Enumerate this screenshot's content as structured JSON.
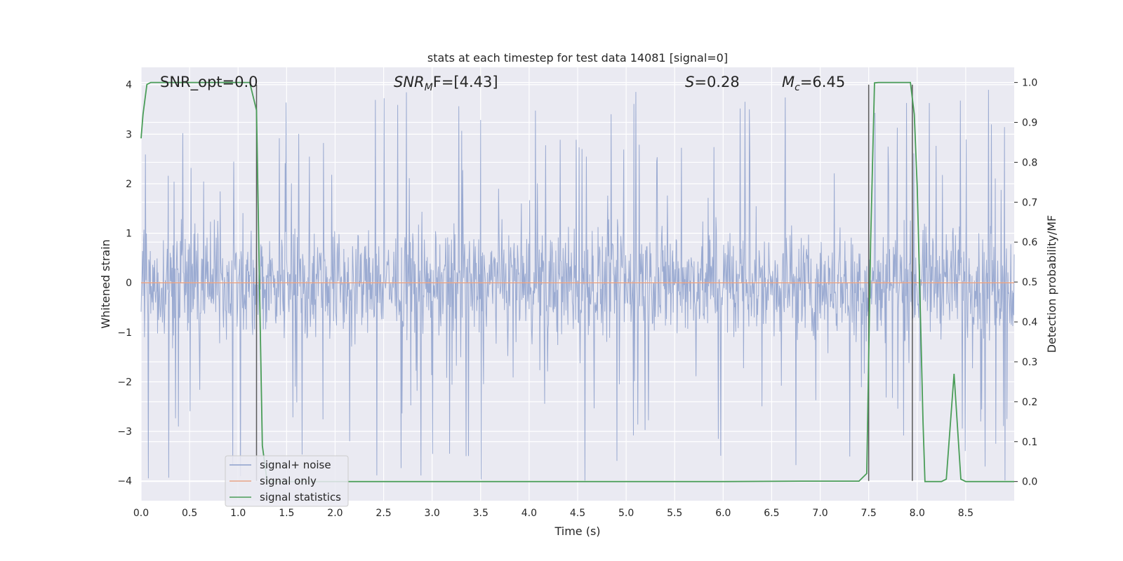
{
  "chart_data": {
    "type": "line",
    "title": "stats at each timestep for test data 14081 [signal=0]",
    "xlabel": "Time (s)",
    "ylabel": "Whitened strain",
    "y2label": "Detection probability/MF",
    "xlim": [
      0,
      9.0
    ],
    "ylim": [
      -4.4,
      4.35
    ],
    "y2lim": [
      -0.048,
      1.038
    ],
    "x_ticks": [
      0.0,
      0.5,
      1.0,
      1.5,
      2.0,
      2.5,
      3.0,
      3.5,
      4.0,
      4.5,
      5.0,
      5.5,
      6.0,
      6.5,
      7.0,
      7.5,
      8.0,
      8.5
    ],
    "x_tick_labels": [
      "0.0",
      "0.5",
      "1.0",
      "1.5",
      "2.0",
      "2.5",
      "3.0",
      "3.5",
      "4.0",
      "4.5",
      "5.0",
      "5.5",
      "6.0",
      "6.5",
      "7.0",
      "7.5",
      "8.0",
      "8.5"
    ],
    "y_ticks": [
      4,
      3,
      2,
      1,
      0,
      -1,
      -2,
      -3,
      -4
    ],
    "y_tick_labels": [
      "4",
      "3",
      "2",
      "1",
      "0",
      "−1",
      "−2",
      "−3",
      "−4"
    ],
    "y2_ticks": [
      1.0,
      0.9,
      0.8,
      0.7,
      0.6,
      0.5,
      0.4,
      0.3,
      0.2,
      0.1,
      0.0
    ],
    "y2_tick_labels": [
      "1.0",
      "0.9",
      "0.8",
      "0.7",
      "0.6",
      "0.5",
      "0.4",
      "0.3",
      "0.2",
      "0.1",
      "0.0"
    ],
    "grid": true,
    "legend_position": "bottom-left",
    "annotations": {
      "snr_opt": "SNR_opt=0.0",
      "snr_mf_base": "SNR",
      "snr_mf_sub": "M",
      "snr_mf_tail": "F=[4.43]",
      "s_base": "S",
      "s_tail": "=0.28",
      "mc_base": "M",
      "mc_sub": "c",
      "mc_tail": "=6.45"
    },
    "series": [
      {
        "name": "signal+ noise",
        "color": "#8c9fcb",
        "kind": "noise",
        "duration": 9.0,
        "samples_per_second": 200,
        "typical_amplitude": 1.6,
        "peak_amplitude": 4.0
      },
      {
        "name": "signal only",
        "color": "#e8a487",
        "kind": "flat",
        "x": [
          0.0,
          9.0
        ],
        "y": [
          0,
          0
        ]
      },
      {
        "name": "signal statistics",
        "color": "#4a9d58",
        "axis": "secondary",
        "x": [
          0.0,
          0.02,
          0.06,
          0.1,
          0.2,
          0.6,
          1.0,
          1.12,
          1.19,
          1.22,
          1.25,
          1.3,
          1.5,
          2.0,
          3.0,
          4.0,
          5.0,
          6.0,
          6.8,
          7.4,
          7.48,
          7.52,
          7.56,
          7.6,
          7.75,
          7.93,
          7.97,
          8.0,
          8.03,
          8.06,
          8.08,
          8.25,
          8.3,
          8.38,
          8.45,
          8.5,
          9.0
        ],
        "y": [
          0.86,
          0.92,
          0.995,
          1.0,
          1.0,
          1.0,
          1.0,
          1.0,
          0.93,
          0.5,
          0.09,
          0.0,
          0.0,
          0.0,
          0.0,
          0.0,
          0.0,
          0.0,
          0.001,
          0.001,
          0.02,
          0.6,
          0.999,
          1.0,
          1.0,
          1.0,
          0.92,
          0.74,
          0.45,
          0.15,
          0.0,
          0.0,
          0.006,
          0.27,
          0.006,
          0.0,
          0.0
        ]
      }
    ],
    "vlines": [
      {
        "x": 1.19,
        "y_from": -4.0,
        "y_to": 4.0,
        "color": "#5a5a5a"
      },
      {
        "x": 7.5,
        "y_from": -4.0,
        "y_to": 4.0,
        "color": "#5a5a5a"
      },
      {
        "x": 7.95,
        "y_from": -4.0,
        "y_to": 4.0,
        "color": "#5a5a5a"
      }
    ]
  }
}
